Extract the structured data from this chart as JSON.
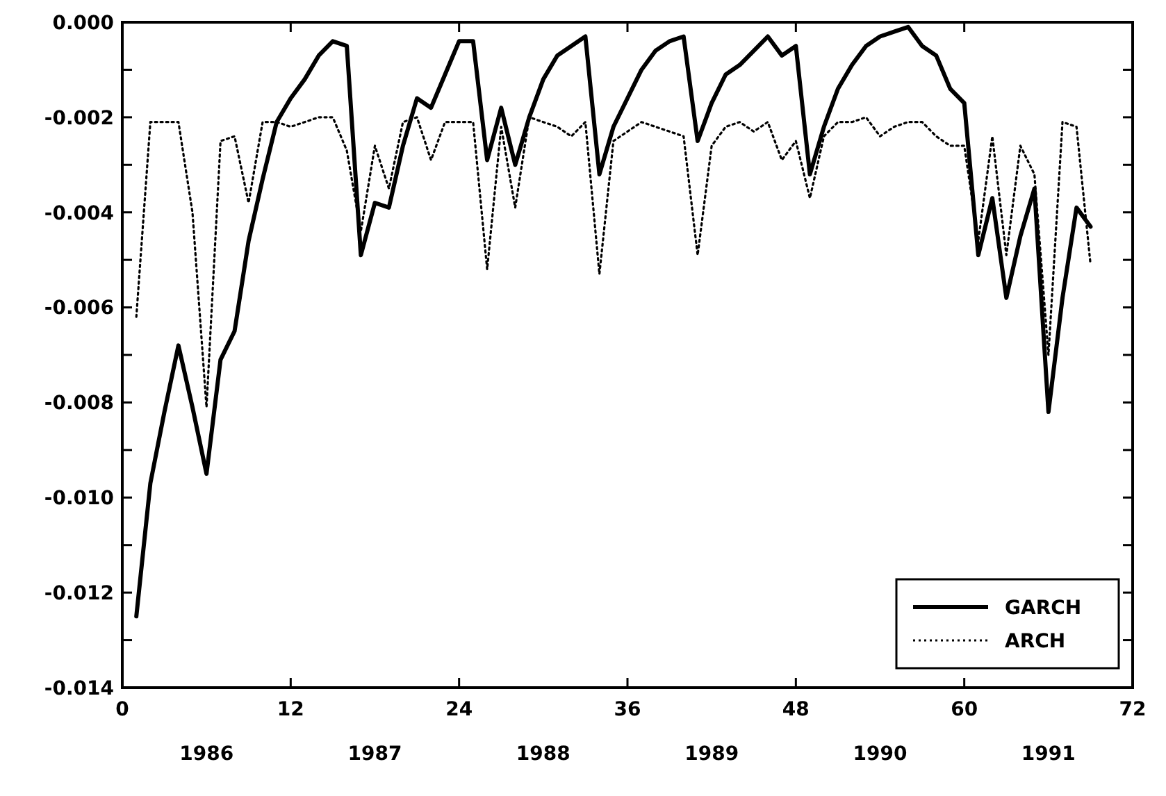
{
  "chart_data": {
    "type": "line",
    "xlim": [
      0,
      72
    ],
    "xticks": [
      0,
      12,
      24,
      36,
      48,
      60,
      72
    ],
    "ylim": [
      -0.014,
      0.0
    ],
    "yticks": [
      {
        "value": -0.014,
        "label": "-0.014"
      },
      {
        "value": -0.013,
        "label": null
      },
      {
        "value": -0.012,
        "label": "-0.012"
      },
      {
        "value": -0.011,
        "label": null
      },
      {
        "value": -0.01,
        "label": "-0.010"
      },
      {
        "value": -0.009,
        "label": null
      },
      {
        "value": -0.008,
        "label": "-0.008"
      },
      {
        "value": -0.007,
        "label": null
      },
      {
        "value": -0.006,
        "label": "-0.006"
      },
      {
        "value": -0.005,
        "label": null
      },
      {
        "value": -0.004,
        "label": "-0.004"
      },
      {
        "value": -0.003,
        "label": null
      },
      {
        "value": -0.002,
        "label": "-0.002"
      },
      {
        "value": -0.001,
        "label": null
      },
      {
        "value": 0.0,
        "label": "0.000"
      }
    ],
    "grid": false,
    "legend": "bottom right",
    "annotations": [
      "1986",
      "1987",
      "1988",
      "1989",
      "1990",
      "1991"
    ],
    "x": [
      1,
      2,
      3,
      4,
      5,
      6,
      7,
      8,
      9,
      10,
      11,
      12,
      13,
      14,
      15,
      16,
      17,
      18,
      19,
      20,
      21,
      22,
      23,
      24,
      25,
      26,
      27,
      28,
      29,
      30,
      31,
      32,
      33,
      34,
      35,
      36,
      37,
      38,
      39,
      40,
      41,
      42,
      43,
      44,
      45,
      46,
      47,
      48,
      49,
      50,
      51,
      52,
      53,
      54,
      55,
      56,
      57,
      58,
      59,
      60,
      61,
      62,
      63,
      64,
      65,
      66,
      67,
      68,
      69
    ],
    "series": [
      {
        "name": "GARCH",
        "color": "#000000",
        "line_style": "solid",
        "values": [
          -0.0125,
          -0.0097,
          -0.0082,
          -0.0068,
          -0.0081,
          -0.0095,
          -0.0071,
          -0.0065,
          -0.0046,
          -0.0033,
          -0.0021,
          -0.0016,
          -0.0012,
          -0.0007,
          -0.0004,
          -0.0005,
          -0.0049,
          -0.0038,
          -0.0039,
          -0.0026,
          -0.0016,
          -0.0018,
          -0.0011,
          -0.0004,
          -0.0004,
          -0.0029,
          -0.0018,
          -0.003,
          -0.002,
          -0.0012,
          -0.0007,
          -0.0005,
          -0.0003,
          -0.0032,
          -0.0022,
          -0.0016,
          -0.001,
          -0.0006,
          -0.0004,
          -0.0003,
          -0.0025,
          -0.0017,
          -0.0011,
          -0.0009,
          -0.0006,
          -0.0003,
          -0.0007,
          -0.0005,
          -0.0032,
          -0.0022,
          -0.0014,
          -0.0009,
          -0.0005,
          -0.0003,
          -0.0002,
          -0.0001,
          -0.0005,
          -0.0007,
          -0.0014,
          -0.0017,
          -0.0049,
          -0.0037,
          -0.0058,
          -0.0045,
          -0.0035,
          -0.0082,
          -0.0058,
          -0.0039,
          -0.0043
        ]
      },
      {
        "name": "ARCH",
        "color": "#000000",
        "line_style": "dotted",
        "values": [
          -0.0062,
          -0.0021,
          -0.0021,
          -0.0021,
          -0.004,
          -0.0081,
          -0.0025,
          -0.0024,
          -0.0038,
          -0.0021,
          -0.0021,
          -0.0022,
          -0.0021,
          -0.002,
          -0.002,
          -0.0027,
          -0.0044,
          -0.0026,
          -0.0035,
          -0.0021,
          -0.002,
          -0.0029,
          -0.0021,
          -0.0021,
          -0.0021,
          -0.0052,
          -0.0022,
          -0.0039,
          -0.002,
          -0.0021,
          -0.0022,
          -0.0024,
          -0.0021,
          -0.0053,
          -0.0025,
          -0.0023,
          -0.0021,
          -0.0022,
          -0.0023,
          -0.0024,
          -0.0049,
          -0.0026,
          -0.0022,
          -0.0021,
          -0.0023,
          -0.0021,
          -0.0029,
          -0.0025,
          -0.0037,
          -0.0024,
          -0.0021,
          -0.0021,
          -0.002,
          -0.0024,
          -0.0022,
          -0.0021,
          -0.0021,
          -0.0024,
          -0.0026,
          -0.0026,
          -0.0046,
          -0.0024,
          -0.0049,
          -0.0026,
          -0.0032,
          -0.007,
          -0.0021,
          -0.0022,
          -0.0051
        ]
      }
    ]
  }
}
